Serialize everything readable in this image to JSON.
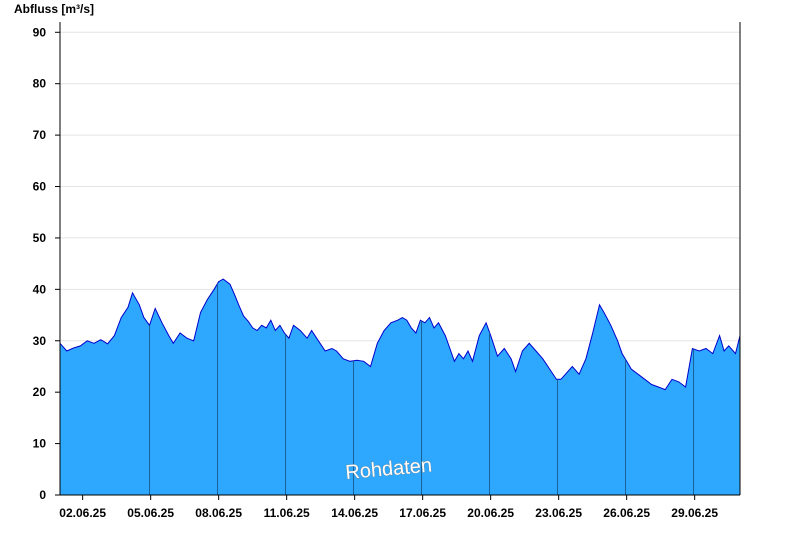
{
  "chart_data": {
    "type": "area",
    "ylabel": "Abfluss [m³/s]",
    "ylim": [
      0,
      92
    ],
    "yticks": [
      0,
      10,
      20,
      30,
      40,
      50,
      60,
      70,
      80,
      90
    ],
    "xlim": [
      1.0,
      31.0
    ],
    "xtick_positions": [
      2,
      5,
      8,
      11,
      14,
      17,
      20,
      23,
      26,
      29
    ],
    "xtick_labels": [
      "02.06.25",
      "05.06.25",
      "08.06.25",
      "11.06.25",
      "14.06.25",
      "17.06.25",
      "20.06.25",
      "23.06.25",
      "26.06.25",
      "29.06.25"
    ],
    "grid": true,
    "fill_color": "#2ea8ff",
    "line_color": "#0000cc",
    "watermark": "Rohdaten",
    "x": [
      1.0,
      1.3,
      1.6,
      1.9,
      2.2,
      2.5,
      2.8,
      3.1,
      3.4,
      3.7,
      4.0,
      4.2,
      4.5,
      4.7,
      4.95,
      5.2,
      5.5,
      5.8,
      6.0,
      6.3,
      6.6,
      6.9,
      7.2,
      7.5,
      7.8,
      8.0,
      8.2,
      8.5,
      8.7,
      8.9,
      9.1,
      9.3,
      9.5,
      9.7,
      9.9,
      10.1,
      10.3,
      10.5,
      10.7,
      10.9,
      11.1,
      11.3,
      11.6,
      11.9,
      12.1,
      12.4,
      12.7,
      13.0,
      13.2,
      13.5,
      13.8,
      14.1,
      14.4,
      14.7,
      15.0,
      15.3,
      15.6,
      15.9,
      16.1,
      16.3,
      16.5,
      16.7,
      16.9,
      17.1,
      17.3,
      17.5,
      17.7,
      18.0,
      18.2,
      18.4,
      18.6,
      18.8,
      19.0,
      19.2,
      19.5,
      19.8,
      20.0,
      20.3,
      20.6,
      20.9,
      21.1,
      21.4,
      21.7,
      22.0,
      22.3,
      22.6,
      22.9,
      23.1,
      23.3,
      23.6,
      23.9,
      24.2,
      24.5,
      24.8,
      25.0,
      25.3,
      25.6,
      25.8,
      26.0,
      26.2,
      26.5,
      26.8,
      27.1,
      27.4,
      27.7,
      28.0,
      28.3,
      28.6,
      28.9,
      29.2,
      29.5,
      29.8,
      30.1,
      30.3,
      30.5,
      30.8,
      31.0
    ],
    "y": [
      29.5,
      28.0,
      28.6,
      29.0,
      30.0,
      29.5,
      30.2,
      29.4,
      31.0,
      34.5,
      36.5,
      39.3,
      37.0,
      34.5,
      33.0,
      36.3,
      33.5,
      31.0,
      29.5,
      31.5,
      30.5,
      30.0,
      35.5,
      38.0,
      40.0,
      41.5,
      42.0,
      41.0,
      39.0,
      36.8,
      34.8,
      33.8,
      32.5,
      32.0,
      33.0,
      32.5,
      34.0,
      32.0,
      33.0,
      31.5,
      30.5,
      33.0,
      32.0,
      30.5,
      32.0,
      30.0,
      28.0,
      28.5,
      28.0,
      26.5,
      26.0,
      26.2,
      26.0,
      25.0,
      29.5,
      32.0,
      33.5,
      34.0,
      34.5,
      34.0,
      32.5,
      31.5,
      34.0,
      33.5,
      34.5,
      32.5,
      33.5,
      31.0,
      28.5,
      26.0,
      27.5,
      26.5,
      28.0,
      26.0,
      31.0,
      33.5,
      31.0,
      27.0,
      28.5,
      26.5,
      24.0,
      28.0,
      29.5,
      28.0,
      26.5,
      24.5,
      22.5,
      22.5,
      23.5,
      25.0,
      23.5,
      26.5,
      31.5,
      37.0,
      35.5,
      33.0,
      30.0,
      27.5,
      26.0,
      24.5,
      23.5,
      22.5,
      21.5,
      21.0,
      20.5,
      22.5,
      22.0,
      21.0,
      28.5,
      28.0,
      28.5,
      27.5,
      31.0,
      28.0,
      29.0,
      27.5,
      31.0
    ]
  }
}
